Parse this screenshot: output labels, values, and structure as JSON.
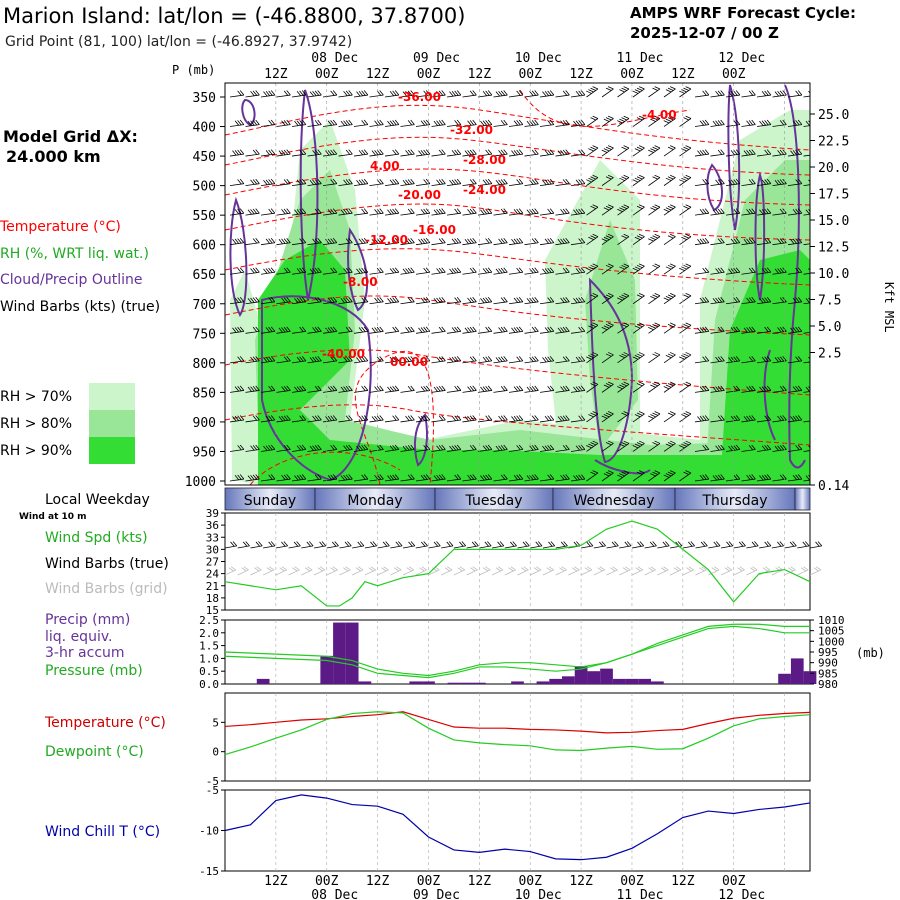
{
  "header": {
    "title": "Marion Island:  lat/lon = (-46.8800, 37.8700)",
    "subtitle": "Grid Point (81, 100) lat/lon = (-46.8927, 37.9742)",
    "cycle_line1": "AMPS WRF Forecast Cycle:",
    "cycle_line2": "2025-12-07 / 00  Z"
  },
  "left_panel": {
    "model_grid_line1": "Model Grid ΔX:",
    "model_grid_line2": "24.000 km",
    "legend_temperature": "Temperature (°C)",
    "legend_rh": "RH (%, WRT liq. wat.)",
    "legend_cloud": "Cloud/Precip Outline",
    "legend_wind": "Wind Barbs (kts) (true)",
    "rh_levels": [
      {
        "label": "RH > 70%",
        "color": "#ccf5cc"
      },
      {
        "label": "RH > 80%",
        "color": "#99e699"
      },
      {
        "label": "RH > 90%",
        "color": "#33dd33"
      }
    ]
  },
  "time_axis": {
    "top_hours": [
      "12Z",
      "00Z",
      "12Z",
      "00Z",
      "12Z",
      "00Z",
      "12Z",
      "00Z",
      "12Z",
      "00Z"
    ],
    "dates": [
      "08 Dec",
      "09 Dec",
      "10 Dec",
      "11 Dec",
      "12 Dec"
    ],
    "bottom_hours": [
      "12Z",
      "00Z",
      "12Z",
      "00Z",
      "12Z",
      "00Z",
      "12Z",
      "00Z",
      "12Z",
      "00Z"
    ]
  },
  "weekday_bar": {
    "label": "Local Weekday",
    "days": [
      "Sunday",
      "Monday",
      "Tuesday",
      "Wednesday",
      "Thursday"
    ]
  },
  "colors": {
    "temp": "#ff0000",
    "cloud": "#663399",
    "wind_chill": "#0000aa",
    "green": "#22cc22",
    "precip_bar": "#5b1a86"
  },
  "chart_data": [
    {
      "type": "heatmap",
      "title": "Pressure-time cross section",
      "ylabel": "P (mb)",
      "y_right_label": "Kft MSL",
      "pressure_ticks": [
        "350",
        "400",
        "450",
        "500",
        "550",
        "600",
        "650",
        "700",
        "750",
        "800",
        "850",
        "900",
        "950",
        "1000"
      ],
      "height_ticks": [
        "25.0",
        "22.5",
        "20.0",
        "17.5",
        "15.0",
        "12.5",
        "10.0",
        "7.5",
        "5.0",
        "2.5",
        "0.14"
      ],
      "temperature_contour_labels": [
        "-36.00",
        "-32.00",
        "-28.00",
        "-24.00",
        "-20.00",
        "-16.00",
        "-12.00",
        "-8.00",
        "-4.00",
        "-40.00",
        "00.00",
        "4.00"
      ]
    },
    {
      "type": "line",
      "title": "Wind at 10 m",
      "labels": [
        "Wind Spd (kts)",
        "Wind Barbs (true)",
        "Wind Barbs (grid)"
      ],
      "yticks": [
        "39",
        "36",
        "33",
        "30",
        "27",
        "24",
        "21",
        "18",
        "15"
      ],
      "ylim": [
        15,
        39
      ],
      "x_hours": [
        0,
        6,
        12,
        18,
        24,
        27,
        30,
        33,
        36,
        42,
        48,
        54,
        60,
        66,
        72,
        78,
        84,
        90,
        96,
        102,
        108,
        114,
        120,
        126,
        132,
        138
      ],
      "wind_speed_kts": [
        22,
        21,
        20,
        21,
        16,
        16,
        18,
        22,
        21,
        23,
        24,
        30,
        30,
        30,
        30,
        30,
        31,
        35,
        37,
        35,
        30,
        25,
        17,
        24,
        25,
        22
      ]
    },
    {
      "type": "bar",
      "title": "Precip and pressure",
      "labels": [
        "Precip (mm)",
        "liq. equiv.",
        "3-hr accum",
        "Pressure (mb)"
      ],
      "yticks_left": [
        "2.5",
        "2.0",
        "1.5",
        "1.0",
        "0.5",
        "0.0"
      ],
      "yticks_right": [
        "1010",
        "1005",
        "1000",
        "995",
        "990",
        "985",
        "980"
      ],
      "right_unit": "(mb)",
      "precip_hours": [
        0,
        3,
        6,
        9,
        12,
        15,
        18,
        21,
        24,
        27,
        30,
        33,
        36,
        39,
        42,
        45,
        48,
        51,
        54,
        57,
        60,
        63,
        66,
        69,
        72,
        75,
        78,
        81,
        84,
        87,
        90,
        93,
        96,
        99,
        102,
        105,
        108,
        111,
        114,
        117,
        120,
        123,
        126,
        129,
        132,
        135,
        138
      ],
      "precip_mm": [
        0,
        0,
        0,
        0.2,
        0,
        0,
        0,
        0,
        1.1,
        2.4,
        2.4,
        0.1,
        0,
        0,
        0,
        0.1,
        0.1,
        0,
        0.05,
        0.05,
        0.05,
        0,
        0,
        0.1,
        0,
        0.1,
        0.2,
        0.3,
        0.7,
        0.5,
        0.6,
        0.2,
        0.2,
        0.2,
        0.1,
        0,
        0,
        0,
        0,
        0,
        0,
        0,
        0,
        0,
        0.4,
        1.0,
        0.5
      ],
      "pressure_hours": [
        0,
        12,
        24,
        30,
        36,
        42,
        48,
        54,
        60,
        66,
        72,
        78,
        84,
        90,
        96,
        102,
        108,
        114,
        120,
        126,
        132,
        138
      ],
      "pressure_mb": [
        995,
        994,
        993,
        991,
        987,
        985,
        984,
        986,
        989,
        990,
        990,
        989,
        988,
        990,
        994,
        999,
        1003,
        1007,
        1008,
        1008,
        1007,
        1007
      ],
      "pressure_hours_2": [
        0,
        12,
        24,
        30,
        36,
        42,
        48,
        54,
        60,
        66,
        72,
        78,
        84,
        90,
        96,
        102,
        108,
        114,
        120,
        126,
        132,
        138
      ],
      "pressure_mb_2": [
        993,
        992,
        991,
        989,
        985,
        984,
        983,
        985,
        988,
        988,
        987,
        986,
        987,
        990,
        994,
        998,
        1002,
        1006,
        1007,
        1006,
        1004,
        1004
      ]
    },
    {
      "type": "line",
      "title": "Temperature and Dewpoint",
      "labels": [
        "Temperature (°C)",
        "Dewpoint (°C)"
      ],
      "yticks": [
        "5",
        "0",
        "-5"
      ],
      "ylim": [
        -5,
        10
      ],
      "x_hours": [
        0,
        6,
        12,
        18,
        24,
        30,
        36,
        42,
        48,
        54,
        60,
        66,
        72,
        78,
        84,
        90,
        96,
        102,
        108,
        114,
        120,
        126,
        132,
        138
      ],
      "temperature_c": [
        4.3,
        4.6,
        5.0,
        5.4,
        5.6,
        6.0,
        6.3,
        6.8,
        5.5,
        4.2,
        4.0,
        4.0,
        3.8,
        3.7,
        3.5,
        3.2,
        3.3,
        3.6,
        3.8,
        4.8,
        5.7,
        6.2,
        6.5,
        6.7
      ],
      "dewpoint_c": [
        -0.5,
        0.8,
        2.3,
        3.7,
        5.5,
        6.5,
        6.8,
        6.6,
        4.0,
        2.0,
        1.5,
        1.2,
        1.0,
        0.3,
        0.2,
        0.6,
        0.9,
        0.4,
        0.5,
        2.3,
        4.4,
        5.6,
        6.0,
        6.3
      ]
    },
    {
      "type": "line",
      "title": "Wind Chill",
      "labels": [
        "Wind Chill T (°C)"
      ],
      "yticks": [
        "-5",
        "-10",
        "-15"
      ],
      "ylim": [
        -15,
        -5
      ],
      "x_hours": [
        0,
        6,
        9,
        12,
        18,
        24,
        30,
        36,
        42,
        48,
        54,
        60,
        66,
        72,
        78,
        84,
        90,
        96,
        102,
        108,
        114,
        120,
        126,
        132,
        138
      ],
      "wind_chill_c": [
        -10.0,
        -9.3,
        -7.8,
        -6.3,
        -5.6,
        -6.0,
        -6.8,
        -7.0,
        -8.0,
        -10.8,
        -12.4,
        -12.7,
        -12.3,
        -12.6,
        -13.5,
        -13.6,
        -13.3,
        -12.2,
        -10.4,
        -8.4,
        -7.6,
        -7.9,
        -7.4,
        -7.1,
        -6.6
      ]
    }
  ]
}
